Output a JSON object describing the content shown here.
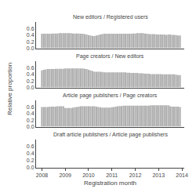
{
  "chart_data": [
    {
      "type": "bar",
      "title": "New editors / Registered users",
      "x": [
        2008,
        2008.0833333333333,
        2008.1666666666667,
        2008.25,
        2008.3333333333333,
        2008.4166666666667,
        2008.5,
        2008.5833333333333,
        2008.6666666666667,
        2008.75,
        2008.8333333333333,
        2008.9166666666667,
        2009,
        2009.0833333333333,
        2009.1666666666667,
        2009.25,
        2009.3333333333333,
        2009.4166666666667,
        2009.5,
        2009.5833333333333,
        2009.6666666666667,
        2009.75,
        2009.8333333333333,
        2009.9166666666667,
        2010,
        2010.0833333333333,
        2010.1666666666667,
        2010.25,
        2010.3333333333333,
        2010.4166666666667,
        2010.5,
        2010.5833333333333,
        2010.6666666666667,
        2010.75,
        2010.8333333333333,
        2010.9166666666667,
        2011,
        2011.0833333333333,
        2011.1666666666667,
        2011.25,
        2011.3333333333333,
        2011.4166666666667,
        2011.5,
        2011.5833333333333,
        2011.6666666666667,
        2011.75,
        2011.8333333333333,
        2011.9166666666667,
        2012,
        2012.0833333333333,
        2012.1666666666667,
        2012.25,
        2012.3333333333333,
        2012.4166666666667,
        2012.5,
        2012.5833333333333,
        2012.6666666666667,
        2012.75,
        2012.8333333333333,
        2012.9166666666667,
        2013,
        2013.0833333333333,
        2013.1666666666667,
        2013.25,
        2013.3333333333333,
        2013.4166666666667,
        2013.5,
        2013.5833333333333,
        2013.6666666666667,
        2013.75,
        2013.8333333333333,
        2013.9166666666667
      ],
      "values": [
        0.44,
        0.44,
        0.44,
        0.44,
        0.44,
        0.44,
        0.45,
        0.45,
        0.45,
        0.46,
        0.46,
        0.46,
        0.46,
        0.46,
        0.46,
        0.46,
        0.45,
        0.45,
        0.45,
        0.45,
        0.44,
        0.44,
        0.43,
        0.42,
        0.4,
        0.39,
        0.38,
        0.37,
        0.39,
        0.4,
        0.42,
        0.43,
        0.44,
        0.44,
        0.44,
        0.44,
        0.44,
        0.44,
        0.44,
        0.44,
        0.44,
        0.44,
        0.44,
        0.44,
        0.44,
        0.44,
        0.44,
        0.45,
        0.45,
        0.46,
        0.46,
        0.46,
        0.46,
        0.45,
        0.44,
        0.43,
        0.43,
        0.43,
        0.43,
        0.42,
        0.42,
        0.42,
        0.42,
        0.42,
        0.41,
        0.42,
        0.42,
        0.41,
        0.41,
        0.4,
        0.39,
        0.39
      ],
      "color": "#b0b0b0",
      "xlim": [
        2007.75,
        2014.1
      ],
      "xticks": [
        2008,
        2009,
        2010,
        2011,
        2012,
        2013,
        2014
      ],
      "ylim": [
        0.0,
        0.8
      ],
      "yticks": [
        {
          "value": 0,
          "label": "0.0"
        },
        0.2,
        0.4,
        0.6
      ],
      "grid": false,
      "tick_labels": "y"
    },
    {
      "type": "bar",
      "title": "Page creators / New editors",
      "x": [
        2008,
        2008.0833333333333,
        2008.1666666666667,
        2008.25,
        2008.3333333333333,
        2008.4166666666667,
        2008.5,
        2008.5833333333333,
        2008.6666666666667,
        2008.75,
        2008.8333333333333,
        2008.9166666666667,
        2009,
        2009.0833333333333,
        2009.1666666666667,
        2009.25,
        2009.3333333333333,
        2009.4166666666667,
        2009.5,
        2009.5833333333333,
        2009.6666666666667,
        2009.75,
        2009.8333333333333,
        2009.9166666666667,
        2010,
        2010.0833333333333,
        2010.1666666666667,
        2010.25,
        2010.3333333333333,
        2010.4166666666667,
        2010.5,
        2010.5833333333333,
        2010.6666666666667,
        2010.75,
        2010.8333333333333,
        2010.9166666666667,
        2011,
        2011.0833333333333,
        2011.1666666666667,
        2011.25,
        2011.3333333333333,
        2011.4166666666667,
        2011.5,
        2011.5833333333333,
        2011.6666666666667,
        2011.75,
        2011.8333333333333,
        2011.9166666666667,
        2012,
        2012.0833333333333,
        2012.1666666666667,
        2012.25,
        2012.3333333333333,
        2012.4166666666667,
        2012.5,
        2012.5833333333333,
        2012.6666666666667,
        2012.75,
        2012.8333333333333,
        2012.9166666666667,
        2013,
        2013.0833333333333,
        2013.1666666666667,
        2013.25,
        2013.3333333333333,
        2013.4166666666667,
        2013.5,
        2013.5833333333333,
        2013.6666666666667,
        2013.75,
        2013.8333333333333,
        2013.9166666666667
      ],
      "values": [
        0.52,
        0.54,
        0.55,
        0.56,
        0.56,
        0.56,
        0.56,
        0.57,
        0.57,
        0.57,
        0.57,
        0.57,
        0.58,
        0.58,
        0.58,
        0.58,
        0.58,
        0.58,
        0.58,
        0.58,
        0.58,
        0.58,
        0.57,
        0.56,
        0.54,
        0.52,
        0.5,
        0.48,
        0.48,
        0.48,
        0.48,
        0.47,
        0.46,
        0.46,
        0.46,
        0.46,
        0.46,
        0.46,
        0.46,
        0.46,
        0.46,
        0.46,
        0.46,
        0.46,
        0.45,
        0.45,
        0.44,
        0.44,
        0.44,
        0.44,
        0.43,
        0.43,
        0.43,
        0.42,
        0.42,
        0.42,
        0.41,
        0.41,
        0.41,
        0.41,
        0.41,
        0.41,
        0.4,
        0.4,
        0.4,
        0.4,
        0.4,
        0.4,
        0.4,
        0.39,
        0.38,
        0.38
      ],
      "color": "#b0b0b0",
      "xlim": [
        2007.75,
        2014.1
      ],
      "xticks": [
        2008,
        2009,
        2010,
        2011,
        2012,
        2013,
        2014
      ],
      "ylim": [
        0.0,
        0.8
      ],
      "yticks": [
        {
          "value": 0,
          "label": "0.0"
        },
        0.2,
        0.4,
        0.6
      ],
      "grid": false,
      "tick_labels": "y"
    },
    {
      "type": "bar",
      "title": "Article page publishers / Page creators",
      "x": [
        2008,
        2008.0833333333333,
        2008.1666666666667,
        2008.25,
        2008.3333333333333,
        2008.4166666666667,
        2008.5,
        2008.5833333333333,
        2008.6666666666667,
        2008.75,
        2008.8333333333333,
        2008.9166666666667,
        2009,
        2009.0833333333333,
        2009.1666666666667,
        2009.25,
        2009.3333333333333,
        2009.4166666666667,
        2009.5,
        2009.5833333333333,
        2009.6666666666667,
        2009.75,
        2009.8333333333333,
        2009.9166666666667,
        2010,
        2010.0833333333333,
        2010.1666666666667,
        2010.25,
        2010.3333333333333,
        2010.4166666666667,
        2010.5,
        2010.5833333333333,
        2010.6666666666667,
        2010.75,
        2010.8333333333333,
        2010.9166666666667,
        2011,
        2011.0833333333333,
        2011.1666666666667,
        2011.25,
        2011.3333333333333,
        2011.4166666666667,
        2011.5,
        2011.5833333333333,
        2011.6666666666667,
        2011.75,
        2011.8333333333333,
        2011.9166666666667,
        2012,
        2012.0833333333333,
        2012.1666666666667,
        2012.25,
        2012.3333333333333,
        2012.4166666666667,
        2012.5,
        2012.5833333333333,
        2012.6666666666667,
        2012.75,
        2012.8333333333333,
        2012.9166666666667,
        2013,
        2013.0833333333333,
        2013.1666666666667,
        2013.25,
        2013.3333333333333,
        2013.4166666666667,
        2013.5,
        2013.5833333333333,
        2013.6666666666667,
        2013.75,
        2013.8333333333333,
        2013.9166666666667
      ],
      "values": [
        0.6,
        0.6,
        0.6,
        0.6,
        0.61,
        0.61,
        0.61,
        0.61,
        0.62,
        0.62,
        0.62,
        0.62,
        0.57,
        0.57,
        0.57,
        0.57,
        0.58,
        0.59,
        0.6,
        0.61,
        0.62,
        0.62,
        0.62,
        0.62,
        0.62,
        0.62,
        0.62,
        0.62,
        0.61,
        0.6,
        0.59,
        0.58,
        0.58,
        0.58,
        0.58,
        0.58,
        0.59,
        0.6,
        0.61,
        0.62,
        0.63,
        0.63,
        0.64,
        0.64,
        0.64,
        0.64,
        0.64,
        0.64,
        0.64,
        0.64,
        0.64,
        0.64,
        0.64,
        0.64,
        0.64,
        0.64,
        0.65,
        0.65,
        0.65,
        0.65,
        0.65,
        0.65,
        0.65,
        0.65,
        0.65,
        0.65,
        0.62,
        0.61,
        0.61,
        0.61,
        0.61,
        0.6
      ],
      "color": "#b0b0b0",
      "xlim": [
        2007.75,
        2014.1
      ],
      "xticks": [
        2008,
        2009,
        2010,
        2011,
        2012,
        2013,
        2014
      ],
      "ylim": [
        0.0,
        0.8
      ],
      "yticks": [
        {
          "value": 0,
          "label": "0.0"
        },
        0.2,
        0.4,
        0.6
      ],
      "grid": false,
      "tick_labels": "y"
    },
    {
      "type": "bar",
      "title": "Draft article publishers / Article page publishers",
      "xlabel": "Registration month",
      "ylabel": "Relative proportion",
      "x": [
        2008,
        2008.0833333333333,
        2008.1666666666667,
        2008.25,
        2008.3333333333333,
        2008.4166666666667,
        2008.5,
        2008.5833333333333,
        2008.6666666666667,
        2008.75,
        2008.8333333333333,
        2008.9166666666667,
        2009,
        2009.0833333333333,
        2009.1666666666667,
        2009.25,
        2009.3333333333333,
        2009.4166666666667,
        2009.5,
        2009.5833333333333,
        2009.6666666666667,
        2009.75,
        2009.8333333333333,
        2009.9166666666667,
        2010,
        2010.0833333333333,
        2010.1666666666667,
        2010.25,
        2010.3333333333333,
        2010.4166666666667,
        2010.5,
        2010.5833333333333,
        2010.6666666666667,
        2010.75,
        2010.8333333333333,
        2010.9166666666667,
        2011,
        2011.0833333333333,
        2011.1666666666667,
        2011.25,
        2011.3333333333333,
        2011.4166666666667,
        2011.5,
        2011.5833333333333,
        2011.6666666666667,
        2011.75,
        2011.8333333333333,
        2011.9166666666667,
        2012,
        2012.0833333333333,
        2012.1666666666667,
        2012.25,
        2012.3333333333333,
        2012.4166666666667,
        2012.5,
        2012.5833333333333,
        2012.6666666666667,
        2012.75,
        2012.8333333333333,
        2012.9166666666667,
        2013,
        2013.0833333333333,
        2013.1666666666667,
        2013.25,
        2013.3333333333333,
        2013.4166666666667,
        2013.5,
        2013.5833333333333,
        2013.6666666666667,
        2013.75,
        2013.8333333333333,
        2013.9166666666667
      ],
      "values": [
        0.0,
        0.0,
        0.0,
        0.0,
        0.0,
        0.0,
        0.0,
        0.0,
        0.0,
        0.0,
        0.0,
        0.0,
        0.0,
        0.0,
        0.0,
        0.0,
        0.0,
        0.0,
        0.0,
        0.0,
        0.0,
        0.0,
        0.0,
        0.0,
        0.0,
        0.0,
        0.0,
        0.0,
        0.0,
        0.0,
        0.0,
        0.0,
        0.0,
        0.0,
        0.0,
        0.0,
        0.0,
        0.0,
        0.0,
        0.0,
        0.0,
        0.0,
        0.0,
        0.0,
        0.0,
        0.0,
        0.0,
        0.0,
        0.0,
        0.0,
        0.0,
        0.0,
        0.0,
        0.0,
        0.0,
        0.0,
        0.0,
        0.0,
        0.0,
        0.0,
        0.0,
        0.0,
        0.0,
        0.0,
        0.0,
        0.0,
        0.0,
        0.0,
        0.0,
        0.0,
        0.0,
        0.0
      ],
      "color": "#b0b0b0",
      "xlim": [
        2007.75,
        2014.1
      ],
      "xticks": [
        2008,
        2009,
        2010,
        2011,
        2012,
        2013,
        2014
      ],
      "ylim": [
        0.0,
        0.8
      ],
      "yticks": [
        {
          "value": 0,
          "label": "0.0"
        },
        0.2,
        0.4,
        0.6
      ],
      "grid": false
    }
  ]
}
